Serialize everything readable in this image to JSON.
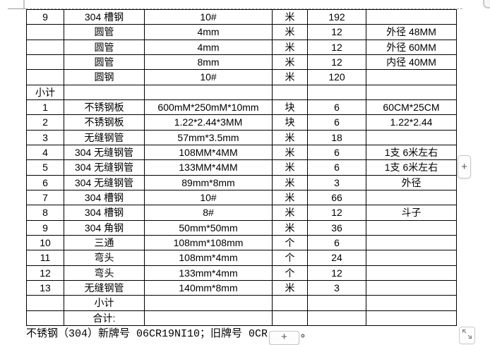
{
  "table": {
    "rows": [
      {
        "num": "9",
        "name": "304 槽钢",
        "spec": "10#",
        "unit": "米",
        "qty": "192",
        "remark": ""
      },
      {
        "num": "",
        "name": "圆管",
        "spec": "4mm",
        "unit": "米",
        "qty": "12",
        "remark": "外径 48MM"
      },
      {
        "num": "",
        "name": "圆管",
        "spec": "4mm",
        "unit": "米",
        "qty": "12",
        "remark": "外径 60MM"
      },
      {
        "num": "",
        "name": "圆管",
        "spec": "8mm",
        "unit": "米",
        "qty": "12",
        "remark": "内径 40MM"
      },
      {
        "num": "",
        "name": "圆钢",
        "spec": "10#",
        "unit": "米",
        "qty": "120",
        "remark": ""
      },
      {
        "num": "小计",
        "name": "",
        "spec": "",
        "unit": "",
        "qty": "",
        "remark": "",
        "indent": "num"
      },
      {
        "num": "1",
        "name": "不锈钢板",
        "spec": "600mM*250mM*10mm",
        "unit": "块",
        "qty": "6",
        "remark": "60CM*25CM"
      },
      {
        "num": "2",
        "name": "不锈钢板",
        "spec": "1.22*2.44*3MM",
        "unit": "块",
        "qty": "6",
        "remark": "1.22*2.44"
      },
      {
        "num": "3",
        "name": "无缝钢管",
        "spec": "57mm*3.5mm",
        "unit": "米",
        "qty": "18",
        "remark": ""
      },
      {
        "num": "4",
        "name": "304 无缝钢管",
        "spec": "108MM*4MM",
        "unit": "米",
        "qty": "6",
        "remark": "1支 6米左右"
      },
      {
        "num": "5",
        "name": "304 无缝钢管",
        "spec": "133MM*4MM",
        "unit": "米",
        "qty": "6",
        "remark": "1支 6米左右"
      },
      {
        "num": "6",
        "name": "304 无缝钢管",
        "spec": "89mm*8mm",
        "unit": "米",
        "qty": "3",
        "remark": "外径"
      },
      {
        "num": "7",
        "name": "304 槽钢",
        "spec": "10#",
        "unit": "米",
        "qty": "66",
        "remark": ""
      },
      {
        "num": "8",
        "name": "304 槽钢",
        "spec": "8#",
        "unit": "米",
        "qty": "12",
        "remark": "斗子"
      },
      {
        "num": "9",
        "name": "304 角钢",
        "spec": "50mm*50mm",
        "unit": "米",
        "qty": "36",
        "remark": ""
      },
      {
        "num": "10",
        "name": "三通",
        "spec": "108mm*108mm",
        "unit": "个",
        "qty": "6",
        "remark": ""
      },
      {
        "num": "11",
        "name": "弯头",
        "spec": "108mm*4mm",
        "unit": "个",
        "qty": "24",
        "remark": ""
      },
      {
        "num": "12",
        "name": "弯头",
        "spec": "133mm*4mm",
        "unit": "个",
        "qty": "12",
        "remark": ""
      },
      {
        "num": "13",
        "name": "无缝钢管",
        "spec": "140mm*8mm",
        "unit": "米",
        "qty": "3",
        "remark": ""
      },
      {
        "num": "",
        "name": "小计",
        "spec": "",
        "unit": "",
        "qty": "",
        "remark": "",
        "indent": "name"
      },
      {
        "num": "",
        "name": "合计:",
        "spec": "",
        "unit": "",
        "qty": "",
        "remark": "",
        "indent": "name"
      }
    ]
  },
  "footnote": {
    "text_before_button": "不锈钢（304）新牌号 06CR19NI10；旧牌号 0CR",
    "text_after_button": "。"
  },
  "buttons": {
    "add_column_label": "+",
    "add_row_label": "+"
  },
  "icons": {
    "resize_handle": "diagonal-expand-arrows"
  },
  "colors": {
    "table_border": "#000000",
    "dashed_line": "#a8a8a8",
    "button_border": "#c6c6c6",
    "button_background": "#fdfdfd",
    "button_symbol": "#555555"
  }
}
